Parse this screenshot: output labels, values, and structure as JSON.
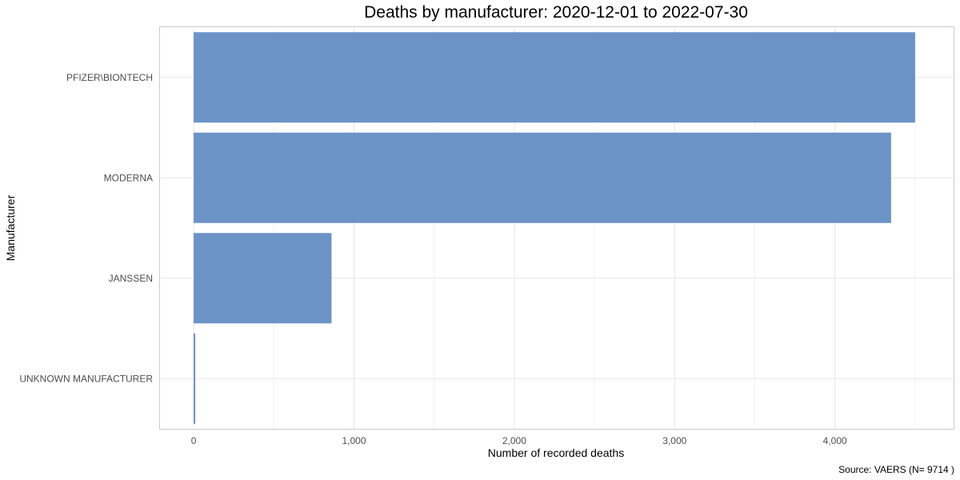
{
  "chart_data": {
    "type": "bar",
    "orientation": "horizontal",
    "title": "Deaths by manufacturer: 2020-12-01 to 2022-07-30",
    "xlabel": "Number of recorded deaths",
    "ylabel": "Manufacturer",
    "caption": "Source: VAERS (N= 9714 )",
    "categories": [
      "PFIZER\\BIONTECH",
      "MODERNA",
      "JANSSEN",
      "UNKNOWN MANUFACTURER"
    ],
    "values": [
      4500,
      4350,
      860,
      4
    ],
    "x_ticks": [
      0,
      1000,
      2000,
      3000,
      4000
    ],
    "x_tick_labels": [
      "0",
      "1,000",
      "2,000",
      "3,000",
      "4,000"
    ],
    "xlim": [
      -210,
      4740
    ],
    "grid": true,
    "legend": "none",
    "colors": {
      "bar": "#6b93c6",
      "panel_border": "#cccccc",
      "grid_major": "#e5e5e5",
      "grid_minor": "#f2f2f2"
    }
  }
}
